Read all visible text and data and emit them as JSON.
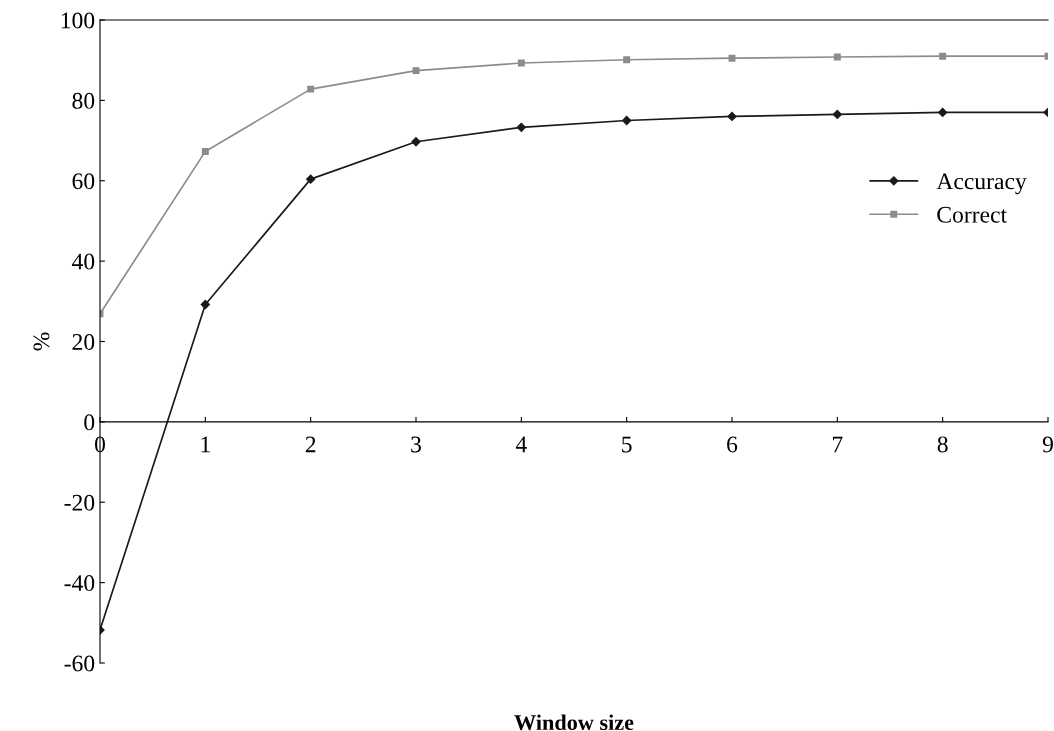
{
  "chart_data": {
    "type": "line",
    "xlabel": "Window size",
    "ylabel": "%",
    "x": [
      0,
      1,
      2,
      3,
      4,
      5,
      6,
      7,
      8,
      9
    ],
    "series": [
      {
        "name": "Accuracy",
        "color": "#1a1a1a",
        "marker": "diamond",
        "values": [
          -51.8,
          29.2,
          60.4,
          69.7,
          73.3,
          75,
          76,
          76.5,
          77,
          77
        ]
      },
      {
        "name": "Correct",
        "color": "#8c8c8c",
        "marker": "square",
        "values": [
          26.9,
          67.3,
          82.8,
          87.4,
          89.3,
          90.1,
          90.5,
          90.8,
          91,
          91
        ]
      }
    ],
    "xlim": [
      0,
      9
    ],
    "xticks": [
      0,
      1,
      2,
      3,
      4,
      5,
      6,
      7,
      8,
      9
    ],
    "ylim": [
      -60,
      100
    ],
    "yticks": [
      -60,
      -40,
      -20,
      0,
      20,
      40,
      60,
      80,
      100
    ],
    "grid": false,
    "legend": "right",
    "line_style": "solid"
  }
}
